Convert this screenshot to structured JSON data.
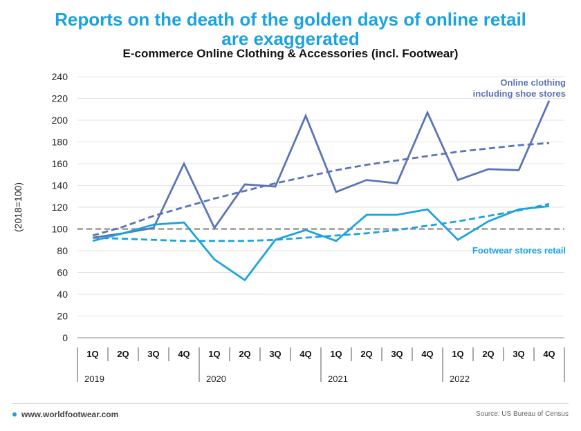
{
  "chart_data": {
    "type": "line",
    "title": "Reports on the death of the golden days of online retail are exaggerated",
    "subtitle": "E-commerce Online Clothing & Accessories (incl. Footwear)",
    "ylabel": "(2018=100)",
    "ylim": [
      0,
      240
    ],
    "yticks": [
      0,
      20,
      40,
      60,
      80,
      100,
      120,
      140,
      160,
      180,
      200,
      220,
      240
    ],
    "categories": [
      "1Q",
      "2Q",
      "3Q",
      "4Q",
      "1Q",
      "2Q",
      "3Q",
      "4Q",
      "1Q",
      "2Q",
      "3Q",
      "4Q",
      "1Q",
      "2Q",
      "3Q",
      "4Q"
    ],
    "years": [
      "2019",
      "2020",
      "2021",
      "2022"
    ],
    "baseline": 100,
    "grid": true,
    "series": [
      {
        "name": "Online clothing including shoe stores",
        "color": "#5a74b5",
        "values": [
          92,
          96,
          101,
          160,
          101,
          141,
          139,
          204,
          134,
          145,
          142,
          207,
          145,
          155,
          154,
          218
        ],
        "trend": [
          94,
          102,
          112,
          120,
          128,
          135,
          142,
          148,
          154,
          159,
          163,
          167,
          171,
          174,
          177,
          179
        ]
      },
      {
        "name": "Footwear stores retail",
        "color": "#1aa3df",
        "values": [
          89,
          96,
          104,
          106,
          72,
          53,
          90,
          99,
          89,
          113,
          113,
          118,
          90,
          107,
          118,
          121
        ],
        "trend": [
          92,
          91,
          90,
          89,
          89,
          89,
          90,
          92,
          94,
          96,
          99,
          103,
          107,
          112,
          117,
          123
        ]
      }
    ]
  },
  "footer": {
    "site": "www.worldfootwear.com",
    "source": "Source: US Bureau of Census"
  }
}
